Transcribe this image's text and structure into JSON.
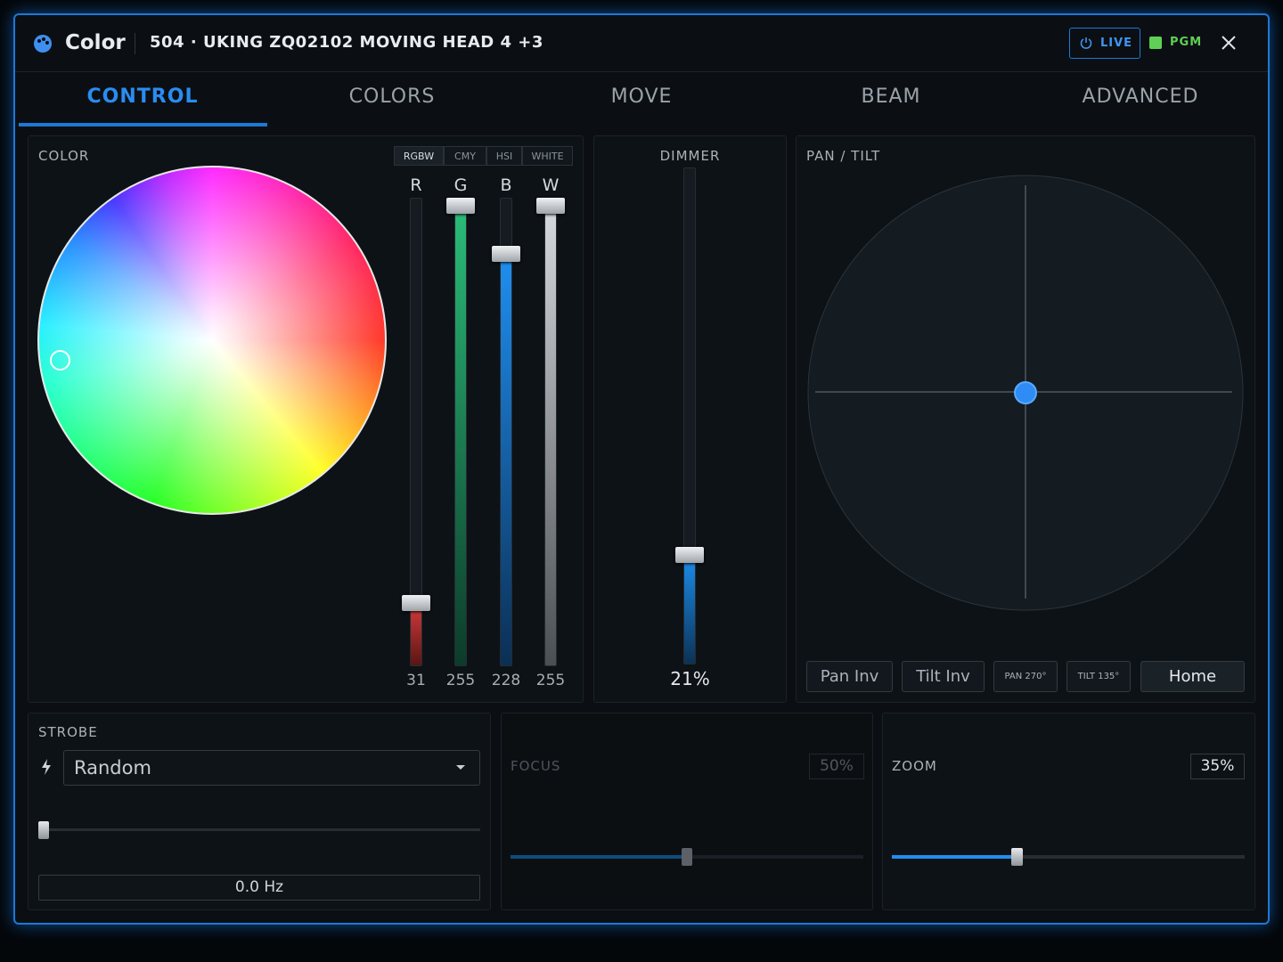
{
  "header": {
    "title": "Color",
    "fixture": "504 · UKING ZQ02102 MOVING HEAD 4 +3",
    "live": "LIVE",
    "pgm": "PGM"
  },
  "tabs": [
    "CONTROL",
    "COLORS",
    "MOVE",
    "BEAM",
    "ADVANCED"
  ],
  "color": {
    "label": "COLOR",
    "modes": [
      "RGBW",
      "CMY",
      "HSI",
      "WHITE"
    ],
    "channels": [
      {
        "name": "R",
        "value": 31
      },
      {
        "name": "G",
        "value": 255
      },
      {
        "name": "B",
        "value": 228
      },
      {
        "name": "W",
        "value": 255
      }
    ]
  },
  "dimmer": {
    "label": "DIMMER",
    "value": "21%"
  },
  "pan_tilt": {
    "label": "PAN / TILT",
    "buttons": [
      "Pan Inv",
      "Tilt Inv",
      "PAN 270°",
      "TILT 135°",
      "Home"
    ]
  },
  "strobe": {
    "label": "STROBE",
    "mode": "Random",
    "rate": "0.0 Hz"
  },
  "focus": {
    "label": "FOCUS",
    "value": "50%"
  },
  "zoom": {
    "label": "ZOOM",
    "value": "35%"
  }
}
